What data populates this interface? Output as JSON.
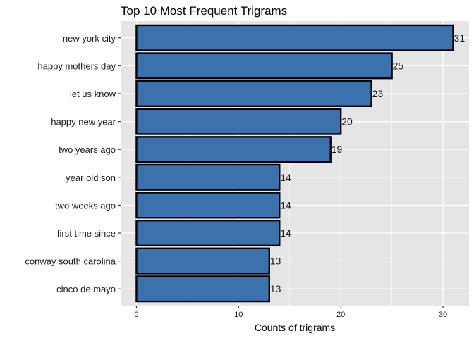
{
  "chart_data": {
    "type": "bar",
    "orientation": "horizontal",
    "title": "Top 10 Most Frequent Trigrams",
    "xlabel": "Counts of trigrams",
    "ylabel": "",
    "categories": [
      "new york city",
      "happy mothers day",
      "let us know",
      "happy new year",
      "two years ago",
      "year old son",
      "two weeks ago",
      "first time since",
      "conway south carolina",
      "cinco de mayo"
    ],
    "values": [
      31,
      25,
      23,
      20,
      19,
      14,
      14,
      14,
      13,
      13
    ],
    "x_ticks": [
      0,
      10,
      20,
      30
    ],
    "xlim": [
      -1.55,
      32.55
    ],
    "grid": true,
    "legend": "none",
    "data_labels": true
  },
  "colors": {
    "panel_background": "#e5e5e5",
    "grid_major": "#ffffff",
    "bar_fill": "#3b71ad",
    "bar_outline": "#000000"
  }
}
